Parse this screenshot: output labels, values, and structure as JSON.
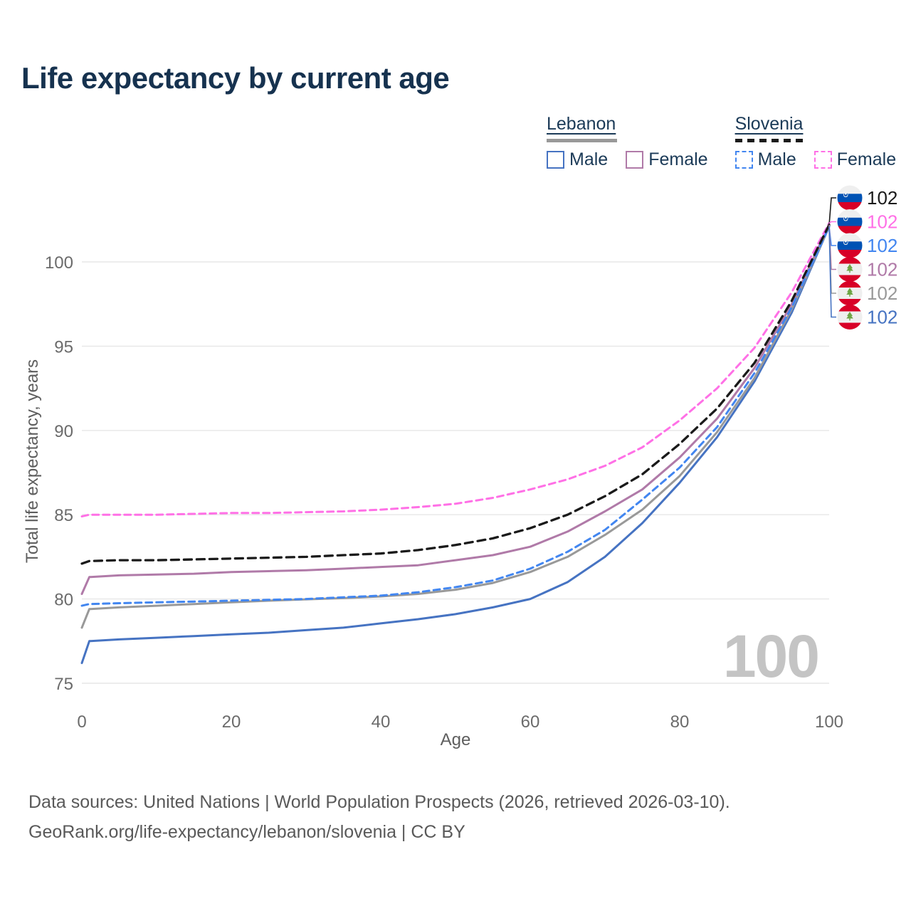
{
  "title": "Life expectancy by current age",
  "watermark": "100",
  "legend": {
    "groups": [
      {
        "name": "Lebanon",
        "style": "solid",
        "underline_color": "#999999",
        "items": [
          {
            "label": "Male",
            "color": "#4673c2",
            "dashed": false
          },
          {
            "label": "Female",
            "color": "#b07aa8",
            "dashed": false
          }
        ]
      },
      {
        "name": "Slovenia",
        "style": "dashed",
        "underline_color": "#1a1a1a",
        "items": [
          {
            "label": "Male",
            "color": "#4286f0",
            "dashed": true
          },
          {
            "label": "Female",
            "color": "#ff70e6",
            "dashed": true
          }
        ]
      }
    ]
  },
  "chart_data": {
    "type": "line",
    "title": "Life expectancy by current age",
    "xlabel": "Age",
    "ylabel": "Total life expectancy, years",
    "xlim": [
      0,
      100
    ],
    "ylim": [
      75,
      102.5
    ],
    "x_ticks": [
      0,
      20,
      40,
      60,
      80,
      100
    ],
    "y_ticks": [
      100,
      95,
      90,
      85,
      80,
      75
    ],
    "grid": true,
    "legend_position": "top-right",
    "x": [
      0,
      1,
      5,
      10,
      15,
      20,
      25,
      30,
      35,
      40,
      45,
      50,
      55,
      60,
      65,
      70,
      75,
      80,
      85,
      90,
      95,
      100
    ],
    "series": [
      {
        "id": "slovenia",
        "name": "Slovenia",
        "country": "slovenia",
        "color": "#1a1a1a",
        "dashed": true,
        "width": 3.3,
        "dash": "11 7",
        "end_label": "102",
        "values": [
          82.1,
          82.25,
          82.3,
          82.3,
          82.35,
          82.4,
          82.45,
          82.5,
          82.6,
          82.7,
          82.9,
          83.2,
          83.6,
          84.2,
          85.0,
          86.1,
          87.4,
          89.2,
          91.3,
          94.0,
          97.7,
          102.2
        ]
      },
      {
        "id": "slovenia-female",
        "name": "Slovenia Female",
        "country": "slovenia",
        "color": "#ff70e6",
        "dashed": true,
        "width": 3,
        "dash": "9 6",
        "end_label": "102",
        "values": [
          84.9,
          85.0,
          85.0,
          85.0,
          85.05,
          85.1,
          85.1,
          85.15,
          85.2,
          85.3,
          85.45,
          85.65,
          86.0,
          86.5,
          87.1,
          87.9,
          89.0,
          90.6,
          92.5,
          94.9,
          98.2,
          102.3
        ]
      },
      {
        "id": "slovenia-male",
        "name": "Slovenia Male",
        "country": "slovenia",
        "color": "#4286f0",
        "dashed": true,
        "width": 3,
        "dash": "9 6",
        "end_label": "102",
        "values": [
          79.6,
          79.7,
          79.75,
          79.8,
          79.85,
          79.9,
          79.95,
          80.0,
          80.1,
          80.2,
          80.4,
          80.7,
          81.1,
          81.8,
          82.8,
          84.1,
          85.9,
          87.8,
          90.2,
          93.4,
          97.3,
          102.1
        ]
      },
      {
        "id": "lebanon-female",
        "name": "Lebanon Female",
        "country": "lebanon",
        "color": "#b07aa8",
        "dashed": false,
        "width": 3,
        "dash": "",
        "end_label": "102",
        "values": [
          80.3,
          81.3,
          81.4,
          81.45,
          81.5,
          81.6,
          81.65,
          81.7,
          81.8,
          81.9,
          82.0,
          82.3,
          82.6,
          83.1,
          84.0,
          85.2,
          86.5,
          88.4,
          90.7,
          93.7,
          97.5,
          102.2
        ]
      },
      {
        "id": "lebanon",
        "name": "Lebanon",
        "country": "lebanon",
        "color": "#999999",
        "dashed": false,
        "width": 3,
        "dash": "",
        "end_label": "102",
        "values": [
          78.3,
          79.4,
          79.5,
          79.6,
          79.7,
          79.8,
          79.9,
          79.98,
          80.05,
          80.15,
          80.3,
          80.55,
          80.95,
          81.6,
          82.5,
          83.8,
          85.3,
          87.3,
          89.9,
          93.1,
          97.2,
          102.1
        ]
      },
      {
        "id": "lebanon-male",
        "name": "Lebanon Male",
        "country": "lebanon",
        "color": "#4673c2",
        "dashed": false,
        "width": 3,
        "dash": "",
        "end_label": "102",
        "values": [
          76.2,
          77.5,
          77.6,
          77.7,
          77.8,
          77.9,
          78.0,
          78.15,
          78.3,
          78.55,
          78.8,
          79.1,
          79.5,
          80.0,
          81.0,
          82.5,
          84.5,
          86.9,
          89.6,
          92.9,
          97.0,
          102.1
        ]
      }
    ]
  },
  "footer": {
    "line1": "Data sources: United Nations | World Population Prospects (2026, retrieved 2026-03-10).",
    "line2": "GeoRank.org/life-expectancy/lebanon/slovenia | CC BY"
  }
}
